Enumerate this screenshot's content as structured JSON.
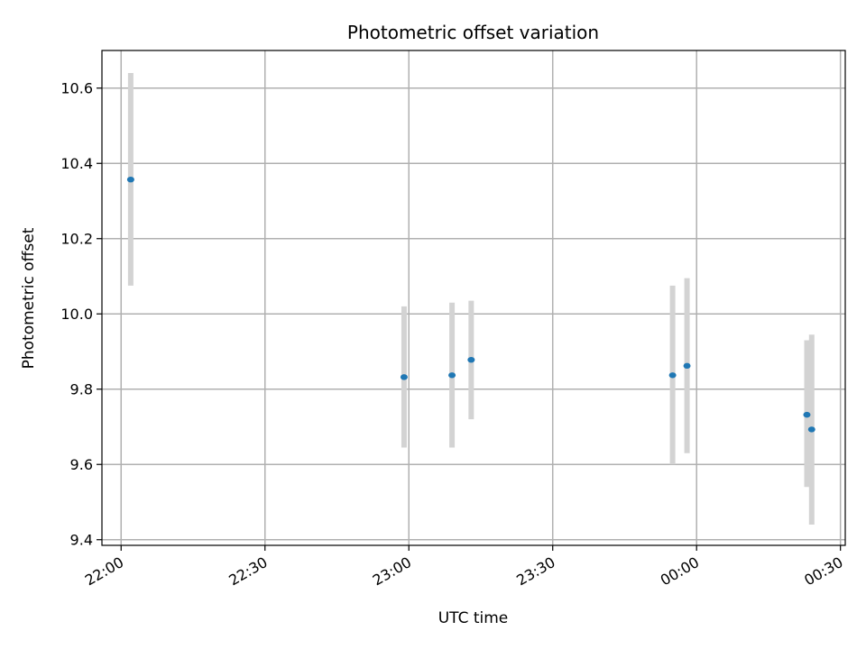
{
  "chart_data": {
    "type": "scatter",
    "title": "Photometric offset variation",
    "xlabel": "UTC time",
    "ylabel": "Photometric offset",
    "x_ticks": [
      "22:00",
      "22:30",
      "23:00",
      "23:30",
      "00:00",
      "00:30"
    ],
    "y_ticks": [
      "9.4",
      "9.6",
      "9.8",
      "10.0",
      "10.2",
      "10.4",
      "10.6"
    ],
    "xlim": [
      "21:56",
      "00:31"
    ],
    "ylim": [
      9.385,
      10.7
    ],
    "grid": true,
    "series": [
      {
        "marker_color": "#1f77b4",
        "errorbar_color": "#d3d3d3",
        "points": [
          {
            "time": "22:02",
            "y": 10.357,
            "y_low": 10.075,
            "y_high": 10.64
          },
          {
            "time": "22:59",
            "y": 9.832,
            "y_low": 9.645,
            "y_high": 10.02
          },
          {
            "time": "23:09",
            "y": 9.837,
            "y_low": 9.645,
            "y_high": 10.03
          },
          {
            "time": "23:13",
            "y": 9.878,
            "y_low": 9.72,
            "y_high": 10.035
          },
          {
            "time": "23:55",
            "y": 9.837,
            "y_low": 9.6,
            "y_high": 10.075
          },
          {
            "time": "23:58",
            "y": 9.862,
            "y_low": 9.63,
            "y_high": 10.095
          },
          {
            "time": "00:23",
            "y": 9.732,
            "y_low": 9.54,
            "y_high": 9.93
          },
          {
            "time": "00:24",
            "y": 9.693,
            "y_low": 9.44,
            "y_high": 9.945
          }
        ]
      }
    ]
  }
}
